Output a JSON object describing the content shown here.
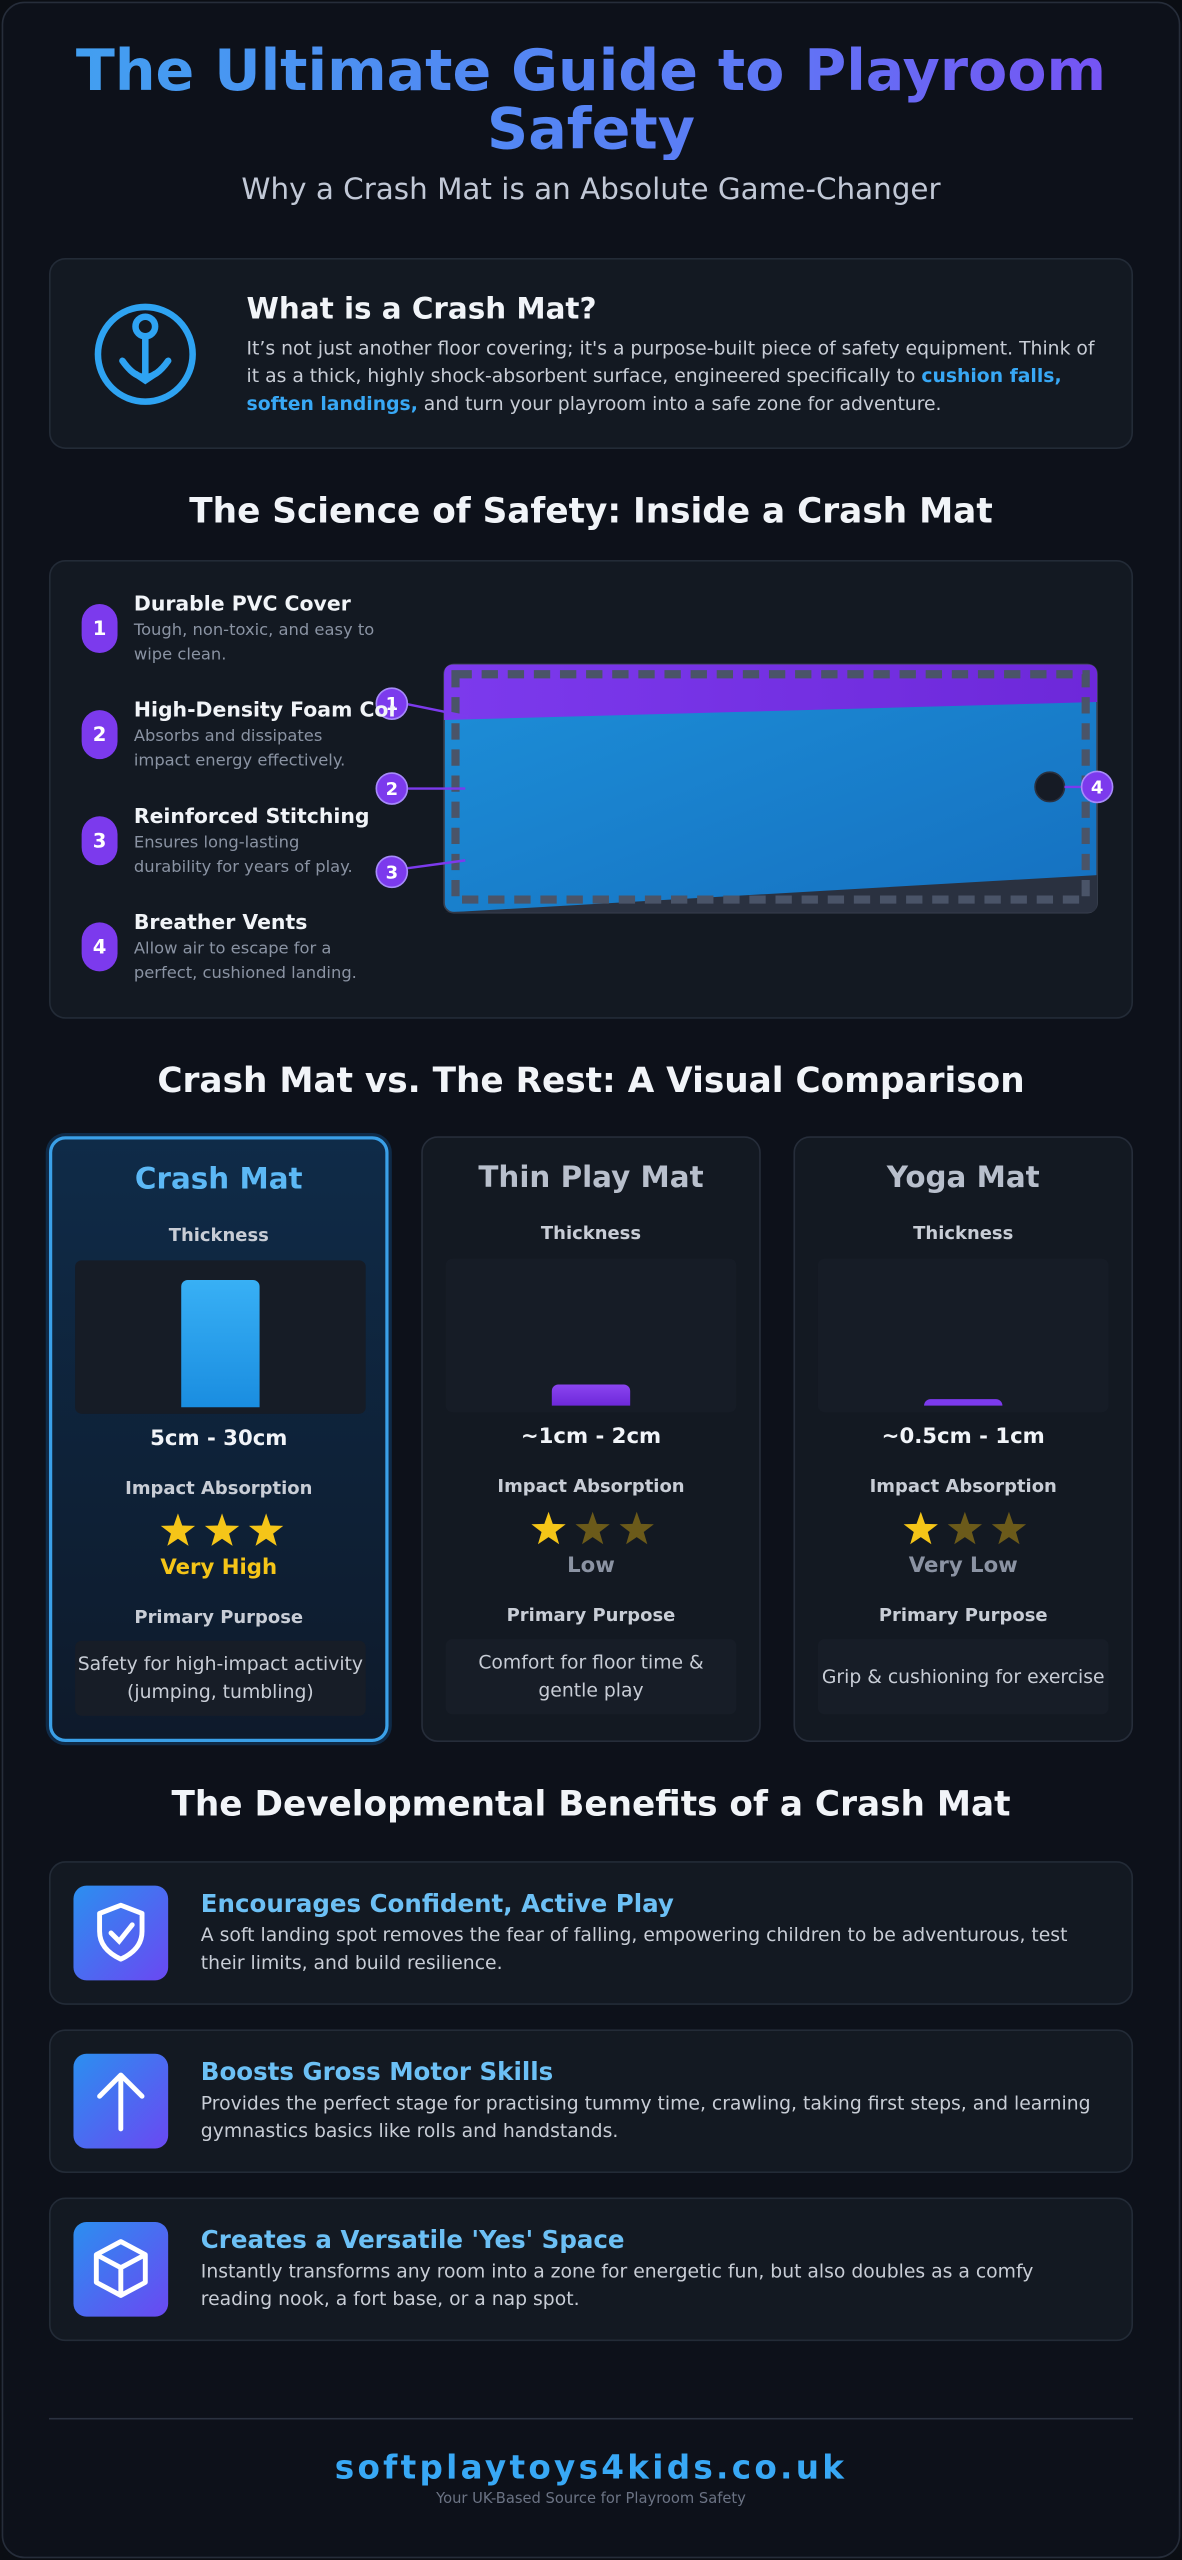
{
  "header": {
    "title": "The Ultimate Guide to Playroom Safety",
    "subtitle": "Why a Crash Mat is an Absolute Game-Changer"
  },
  "intro": {
    "title": "What is a Crash Mat?",
    "text_before": "It’s not just another floor covering; it's a purpose-built piece of safety equipment. Think of it as a thick, highly shock-absorbent surface, engineered specifically to ",
    "highlight": "cushion falls, soften landings,",
    "text_after": " and turn your playroom into a safe zone for adventure."
  },
  "science": {
    "title": "The Science of Safety: Inside a Crash Mat",
    "layers": [
      {
        "number": 1,
        "title": "Durable PVC Cover",
        "text": "Tough, non-toxic, and easy to wipe clean."
      },
      {
        "number": 2,
        "title": "High-Density Foam Core",
        "text": "Absorbs and dissipates impact energy effectively."
      },
      {
        "number": 3,
        "title": "Reinforced Stitching",
        "text": "Ensures long-lasting durability for years of play."
      },
      {
        "number": 4,
        "title": "Breather Vents",
        "text": "Allow air to escape for a perfect, cushioned landing."
      }
    ]
  },
  "comparison": {
    "title": "Crash Mat vs. The Rest: A Visual Comparison",
    "mats": [
      {
        "name": "Crash Mat",
        "thickness_label": "Thickness",
        "thickness": "5cm - 30cm",
        "absorption_label": "Impact Absorption",
        "stars": 3,
        "rating": "Very High",
        "purpose_label": "Primary Purpose",
        "purpose": "Safety for high-impact activity (jumping, tumbling)"
      },
      {
        "name": "Thin Play Mat",
        "thickness_label": "Thickness",
        "thickness": "~1cm - 2cm",
        "absorption_label": "Impact Absorption",
        "stars": 1,
        "rating": "Low",
        "purpose_label": "Primary Purpose",
        "purpose": "Comfort for floor time & gentle play"
      },
      {
        "name": "Yoga Mat",
        "thickness_label": "Thickness",
        "thickness": "~0.5cm - 1cm",
        "absorption_label": "Impact Absorption",
        "stars": 1,
        "rating": "Very Low",
        "purpose_label": "Primary Purpose",
        "purpose": "Grip & cushioning for exercise"
      }
    ]
  },
  "benefits": {
    "title": "The Developmental Benefits of a Crash Mat",
    "items": [
      {
        "title": "Encourages Confident, Active Play",
        "text": "A soft landing spot removes the fear of falling, empowering children to be adventurous, test their limits, and build resilience."
      },
      {
        "title": "Boosts Gross Motor Skills",
        "text": "Provides the perfect stage for practising tummy time, crawling, taking first steps, and learning gymnastics basics like rolls and handstands."
      },
      {
        "title": "Creates a Versatile 'Yes' Space",
        "text": "Instantly transforms any room into a zone for energetic fun, but also doubles as a comfy reading nook, a fort base, or a nap spot."
      }
    ]
  },
  "footer": {
    "site": "softplaytoys4kids.co.uk",
    "tagline": "Your UK-Based Source for Playroom Safety"
  }
}
